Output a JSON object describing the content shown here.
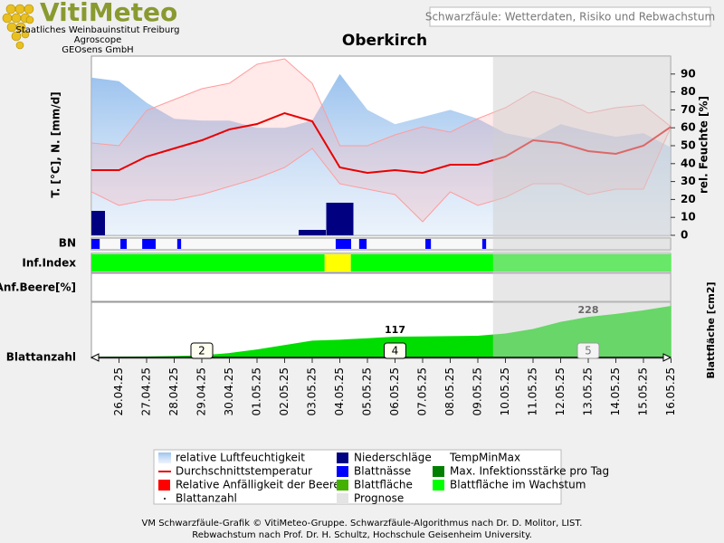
{
  "header": {
    "logo": "VitiMeteo",
    "org_lines": [
      "Staatliches Weinbauinstitut Freiburg",
      "Agroscope",
      "GEOsens GmbH"
    ],
    "subtitle": "Schwarzfäule: Wetterdaten, Risiko und Rebwachstum"
  },
  "chart_data": {
    "type": "line",
    "title": "Oberkirch",
    "categories": [
      null,
      "26.04.25",
      "27.04.25",
      "28.04.25",
      "29.04.25",
      "30.04.25",
      "01.05.25",
      "02.05.25",
      "03.05.25",
      "04.05.25",
      "05.05.25",
      "06.05.25",
      "07.05.25",
      "08.05.25",
      "09.05.25",
      "10.05.25",
      "11.05.25",
      "12.05.25",
      "13.05.25",
      "14.05.25",
      "15.05.25",
      "16.05.25"
    ],
    "ylabel": "T. [°C], N. [mm/d]",
    "y2label": "rel. Feuchte [%]",
    "ylim": [
      0,
      33
    ],
    "y2lim": [
      0,
      100
    ],
    "y2ticks": [
      0,
      10,
      20,
      30,
      40,
      50,
      60,
      70,
      80,
      90
    ],
    "forecast_start": 14.55,
    "humidity": {
      "color": "#8fbbec",
      "axis": "y2",
      "values": [
        88,
        86,
        74,
        65,
        64,
        64,
        60,
        60,
        64,
        90,
        70,
        62,
        66,
        70,
        65,
        57,
        54,
        62,
        58,
        55,
        57,
        49
      ]
    },
    "temperature": {
      "color": "#e80000",
      "values": [
        12,
        12,
        14.5,
        16,
        17.5,
        19.5,
        20.5,
        22.5,
        21,
        12.5,
        11.5,
        12,
        11.5,
        13,
        13,
        14.5,
        17.5,
        17,
        15.5,
        15,
        16.5,
        20
      ]
    },
    "temp_minmax": {
      "color": "#ff9c9c",
      "min": [
        8,
        5.5,
        6.5,
        6.5,
        7.5,
        9,
        10.5,
        12.5,
        16,
        9.5,
        8.5,
        7.5,
        2.5,
        8,
        5.5,
        7,
        9.5,
        9.5,
        7.5,
        8.5,
        8.5,
        20
      ],
      "max": [
        17,
        16.5,
        23,
        25,
        27,
        28,
        31.5,
        32.5,
        28,
        16.5,
        16.5,
        18.5,
        20,
        19,
        21.5,
        23.5,
        26.5,
        25,
        22.5,
        23.5,
        24,
        20
      ]
    },
    "precipitation": {
      "color": "#000080",
      "values": [
        4.5,
        0,
        0,
        0,
        0,
        0,
        0,
        0,
        1,
        6,
        0,
        0,
        0,
        0,
        0,
        0,
        0,
        0,
        0,
        0,
        0,
        0
      ]
    },
    "leaf_wetness": {
      "label": "BN",
      "color": "#0000ff",
      "intervals": [
        [
          0,
          0.3
        ],
        [
          1.05,
          1.28
        ],
        [
          1.84,
          2.33
        ],
        [
          3.11,
          3.25
        ],
        [
          8.85,
          9.41
        ],
        [
          9.7,
          9.97
        ],
        [
          12.1,
          12.3
        ],
        [
          14.16,
          14.3
        ]
      ]
    },
    "infection_index": {
      "label": "Inf.Index",
      "intervals": [
        {
          "start": 0,
          "end": 8.45,
          "color": "#00ff00"
        },
        {
          "start": 8.45,
          "end": 9.4,
          "color": "#ffff00"
        },
        {
          "start": 9.4,
          "end": 21,
          "color": "#00ff00"
        }
      ]
    },
    "berry": {
      "label": "Anf.Beere[%]"
    },
    "leaf_area": {
      "label": "Blattfläche [cm2]",
      "color": "#00dd00",
      "ylim": [
        0,
        300
      ],
      "values": [
        3,
        5,
        6,
        8,
        12,
        25,
        45,
        70,
        95,
        100,
        108,
        117,
        118,
        120,
        122,
        135,
        160,
        200,
        228,
        245,
        265,
        290
      ],
      "annotations": [
        {
          "x": 11,
          "value": 117
        },
        {
          "x": 18,
          "value": 228
        }
      ]
    },
    "leaf_count": {
      "label": "Blattanzahl",
      "x": [
        4,
        11,
        18
      ],
      "values": [
        2,
        4,
        5
      ]
    },
    "legend": [
      {
        "name": "relative Luftfeuchtigkeit",
        "color": "#8fbbec",
        "swatch": "area"
      },
      {
        "name": "Niederschläge",
        "color": "#000080",
        "swatch": "square"
      },
      {
        "name": "TempMinMax",
        "color": "#ff9c9c",
        "swatch": "none"
      },
      {
        "name": "Durchschnittstemperatur",
        "color": "#e80000",
        "swatch": "line"
      },
      {
        "name": "Blattnässe",
        "color": "#0000ff",
        "swatch": "square"
      },
      {
        "name": "Max. Infektionsstärke pro Tag",
        "color": "#008000",
        "swatch": "square"
      },
      {
        "name": "Relative Anfälligkeit der Beere",
        "color": "#ff0000",
        "swatch": "square"
      },
      {
        "name": "Blattfläche",
        "color": "#44b000",
        "swatch": "square"
      },
      {
        "name": "Blattfläche im Wachstum",
        "color": "#00ff00",
        "swatch": "square"
      },
      {
        "name": "Blattanzahl",
        "color": "#000000",
        "swatch": "dot"
      },
      {
        "name": "Prognose",
        "color": "#e4e4e4",
        "swatch": "square"
      }
    ],
    "footer": [
      "VM Schwarzfäule-Grafik © VitiMeteo-Gruppe. Schwarzfäule-Algorithmus nach Dr. D. Molitor, LIST.",
      "Rebwachstum nach Prof. Dr. H. Schultz, Hochschule Geisenheim University."
    ]
  }
}
